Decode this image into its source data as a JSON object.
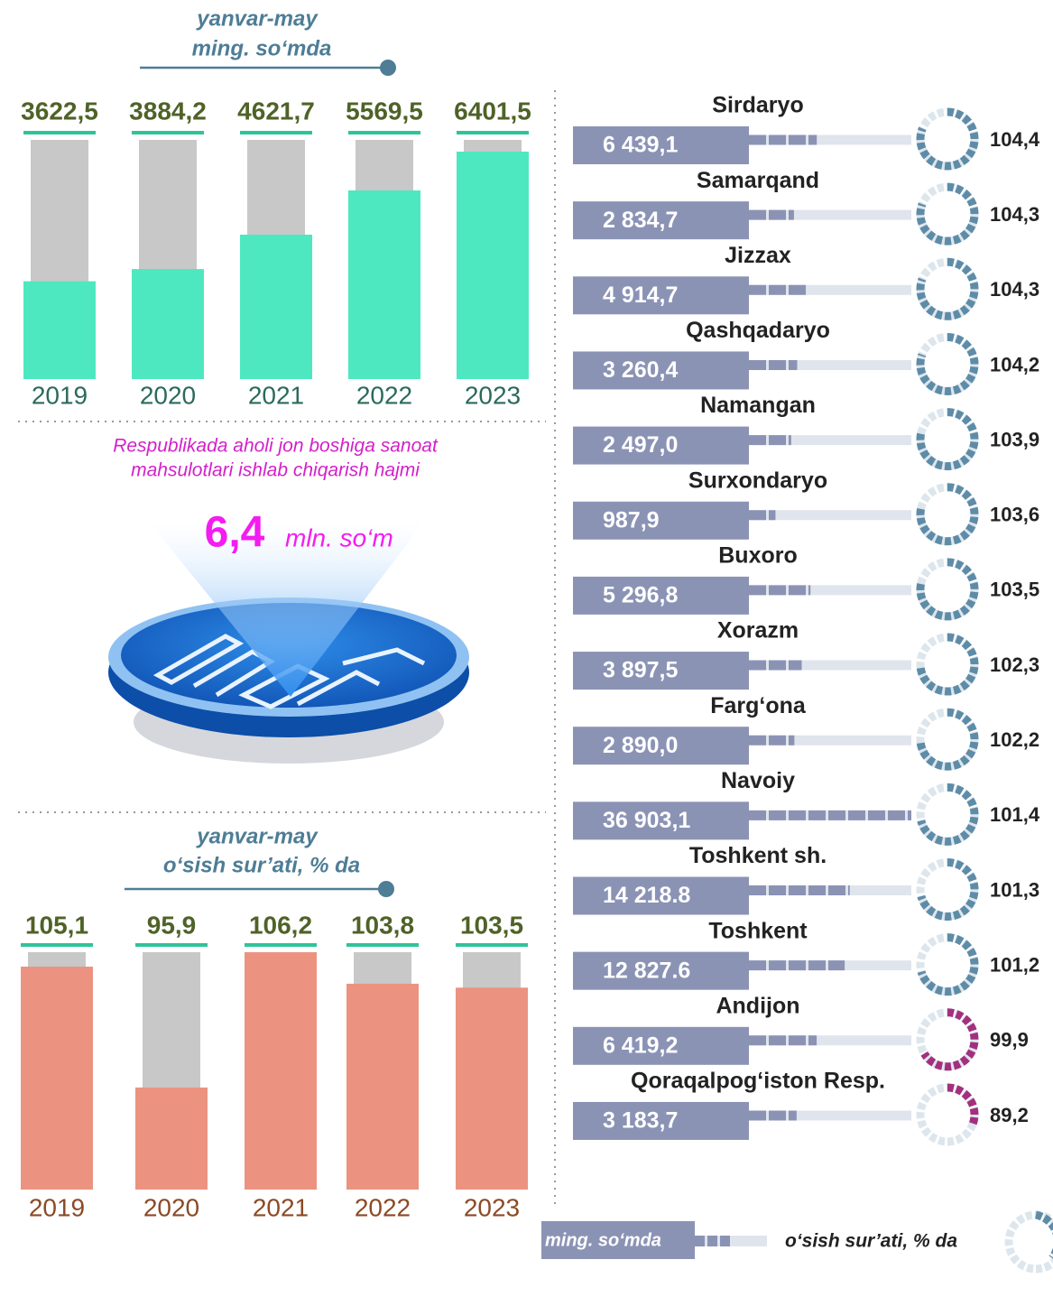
{
  "chart_data": [
    {
      "type": "bar",
      "title": "yanvar-may",
      "subtitle": "ming. so‘mda",
      "categories": [
        "2019",
        "2020",
        "2021",
        "2022",
        "2023"
      ],
      "values": [
        3622.5,
        3884.2,
        4621.7,
        5569.5,
        6401.5
      ],
      "value_labels": [
        "3622,5",
        "3884,2",
        "4621,7",
        "5569,5",
        "6401,5"
      ],
      "color": "#4de8c0"
    },
    {
      "type": "bar",
      "title": "yanvar-may",
      "subtitle": "o‘sish sur’ati, % da",
      "categories": [
        "2019",
        "2020",
        "2021",
        "2022",
        "2023"
      ],
      "values": [
        105.1,
        95.9,
        106.2,
        103.8,
        103.5
      ],
      "value_labels": [
        "105,1",
        "95,9",
        "106,2",
        "103,8",
        "103,5"
      ],
      "color": "#eb9380"
    },
    {
      "type": "infographic",
      "categories": [
        "Sirdaryo",
        "Samarqand",
        "Jizzax",
        "Qashqadaryo",
        "Namangan",
        "Surxondaryo",
        "Buxoro",
        "Xorazm",
        "Farg‘ona",
        "Navoiy",
        "Toshkent sh.",
        "Toshkent",
        "Andijon",
        "Qoraqalpog‘iston Resp."
      ],
      "series": [
        {
          "name": "ming. so‘mda",
          "color": "#8b93b5",
          "values": [
            6439.1,
            2834.7,
            4914.7,
            3260.4,
            2497.0,
            987.9,
            5296.8,
            3897.5,
            2890.0,
            36903.1,
            14218.8,
            12827.6,
            6419.2,
            3183.7
          ],
          "value_labels": [
            "6 439,1",
            "2 834,7",
            "4 914,7",
            "3 260,4",
            "2 497,0",
            "987,9",
            "5 296,8",
            "3 897,5",
            "2 890,0",
            "36 903,1",
            "14 218.8",
            "12 827.6",
            "6 419,2",
            "3 183,7"
          ]
        },
        {
          "name": "o‘sish sur’ati, % da",
          "color": "#5e8ca8",
          "values": [
            104.4,
            104.3,
            104.3,
            104.2,
            103.9,
            103.6,
            103.5,
            102.3,
            102.2,
            101.4,
            101.3,
            101.2,
            99.9,
            89.2
          ],
          "value_labels": [
            "104,4",
            "104,3",
            "104,3",
            "104,2",
            "103,9",
            "103,6",
            "103,5",
            "102,3",
            "102,2",
            "101,4",
            "101,3",
            "101,2",
            "99,9",
            "89,2"
          ]
        }
      ]
    }
  ],
  "highlight": {
    "caption": [
      "Respublikada aholi jon boshiga sanoat",
      "mahsulotlari ishlab chiqarish hajmi"
    ],
    "value": "6,4",
    "unit": "mln. so‘m"
  }
}
